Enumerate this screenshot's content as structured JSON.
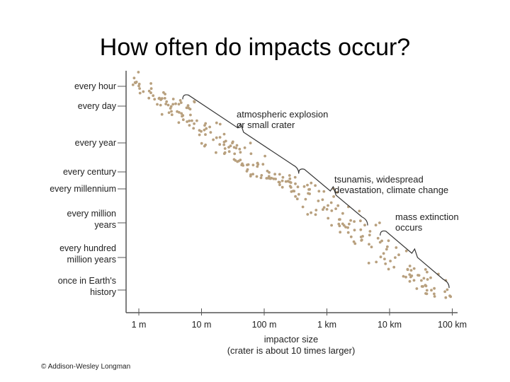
{
  "title": "How often do impacts occur?",
  "credit": "© Addison-Wesley Longman",
  "chart_data": {
    "type": "scatter",
    "title": "How often do impacts occur?",
    "xlabel": "impactor size",
    "xlabel_sub": "(crater is about 10 times larger)",
    "ylabel": "",
    "x_scale": "log10_meters",
    "xlim": [
      1,
      100000
    ],
    "x_ticks": [
      {
        "value": 1,
        "label": "1 m"
      },
      {
        "value": 10,
        "label": "10 m"
      },
      {
        "value": 100,
        "label": "100 m"
      },
      {
        "value": 1000,
        "label": "1 km"
      },
      {
        "value": 10000,
        "label": "10 km"
      },
      {
        "value": 100000,
        "label": "100 km"
      }
    ],
    "y_ticks": [
      {
        "level": 0,
        "label": "every hour"
      },
      {
        "level": 1,
        "label": "every day"
      },
      {
        "level": 2,
        "label": "every year"
      },
      {
        "level": 3,
        "label": "every century"
      },
      {
        "level": 4,
        "label": "every millennium"
      },
      {
        "level": 5,
        "label": "every million",
        "label2": "years"
      },
      {
        "level": 6,
        "label": "every hundred",
        "label2": "million years"
      },
      {
        "level": 7,
        "label": "once in Earth's",
        "label2": "history"
      }
    ],
    "trend": {
      "start_log_size": -0.1,
      "start_level": 0.0,
      "end_log_size": 5.0,
      "end_level": 7.4,
      "spread": 0.55,
      "count": 300
    },
    "annotations": [
      {
        "text": [
          "atmospheric explosion",
          "or small crater"
        ],
        "from_log_size": 0.7,
        "to_log_size": 2.55
      },
      {
        "text": [
          "tsunamis, widespread",
          "devastation, climate change"
        ],
        "from_log_size": 2.55,
        "to_log_size": 3.65
      },
      {
        "text": [
          "mass extinction",
          "occurs"
        ],
        "from_log_size": 3.85,
        "to_log_size": 4.95
      }
    ]
  }
}
